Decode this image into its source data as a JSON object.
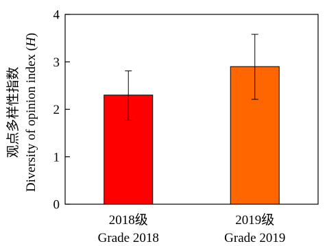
{
  "chart_data": {
    "type": "bar",
    "categories": [
      [
        "2018级",
        "Grade 2018"
      ],
      [
        "2019级",
        "Grade 2019"
      ]
    ],
    "values": [
      2.3,
      2.9
    ],
    "error_low": [
      1.77,
      2.21
    ],
    "error_high": [
      2.81,
      3.58
    ],
    "bar_colors": [
      "#ff0000",
      "#ff6600"
    ],
    "ylabel_cn": "观点多样性指数",
    "ylabel_en_prefix": "Diversity of opinion index (",
    "ylabel_en_symbol": "H",
    "ylabel_en_suffix": ")",
    "ylim": [
      0,
      4
    ],
    "yticks": [
      0,
      1,
      2,
      3,
      4
    ],
    "grid": false
  }
}
